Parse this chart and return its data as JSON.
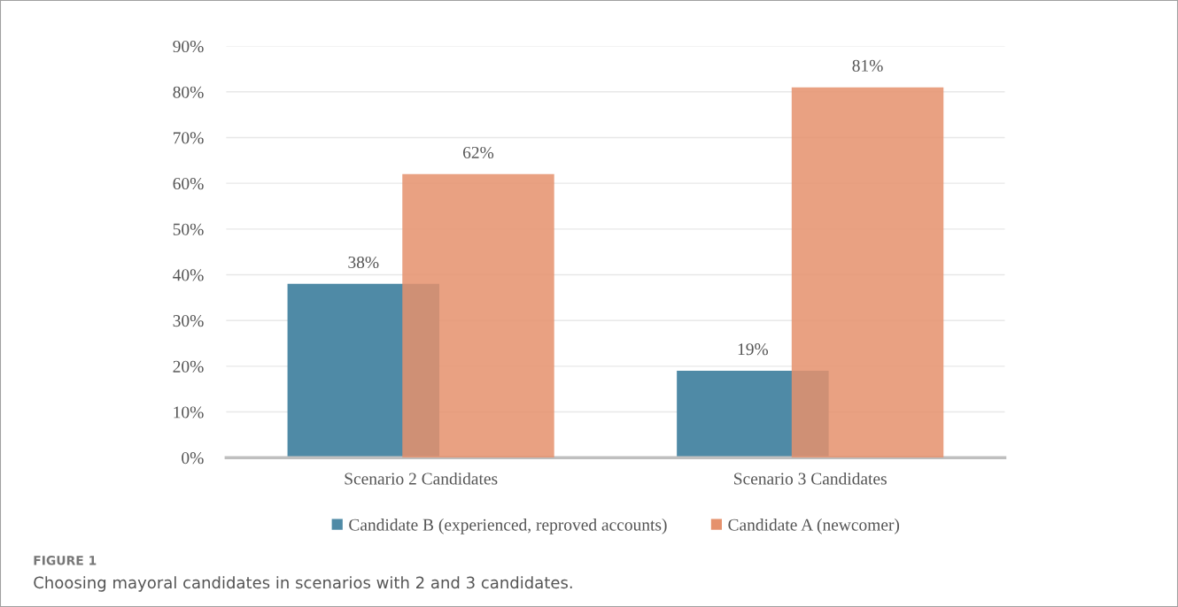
{
  "chart_data": {
    "type": "bar",
    "categories": [
      "Scenario 2 Candidates",
      "Scenario 3 Candidates"
    ],
    "series": [
      {
        "name": "Candidate B (experienced, reproved accounts)",
        "color": "#4f8aa6",
        "values": [
          38,
          19
        ],
        "value_labels": [
          "38%",
          "19%"
        ]
      },
      {
        "name": "Candidate A (newcomer)",
        "color": "#e5916c",
        "values": [
          62,
          81
        ],
        "value_labels": [
          "62%",
          "81%"
        ]
      }
    ],
    "ylim": [
      0,
      90
    ],
    "yticks": [
      {
        "value": 0,
        "label": "0%"
      },
      {
        "value": 10,
        "label": "10%"
      },
      {
        "value": 20,
        "label": "20%"
      },
      {
        "value": 30,
        "label": "30%"
      },
      {
        "value": 40,
        "label": "40%"
      },
      {
        "value": 50,
        "label": "50%"
      },
      {
        "value": 60,
        "label": "60%"
      },
      {
        "value": 70,
        "label": "70%"
      },
      {
        "value": 80,
        "label": "80%"
      },
      {
        "value": 90,
        "label": "90%"
      }
    ],
    "grid": "y",
    "legend": "bottom",
    "annotations": [
      "FIGURE 1",
      "Choosing mayoral candidates in scenarios with 2 and 3 candidates."
    ]
  }
}
